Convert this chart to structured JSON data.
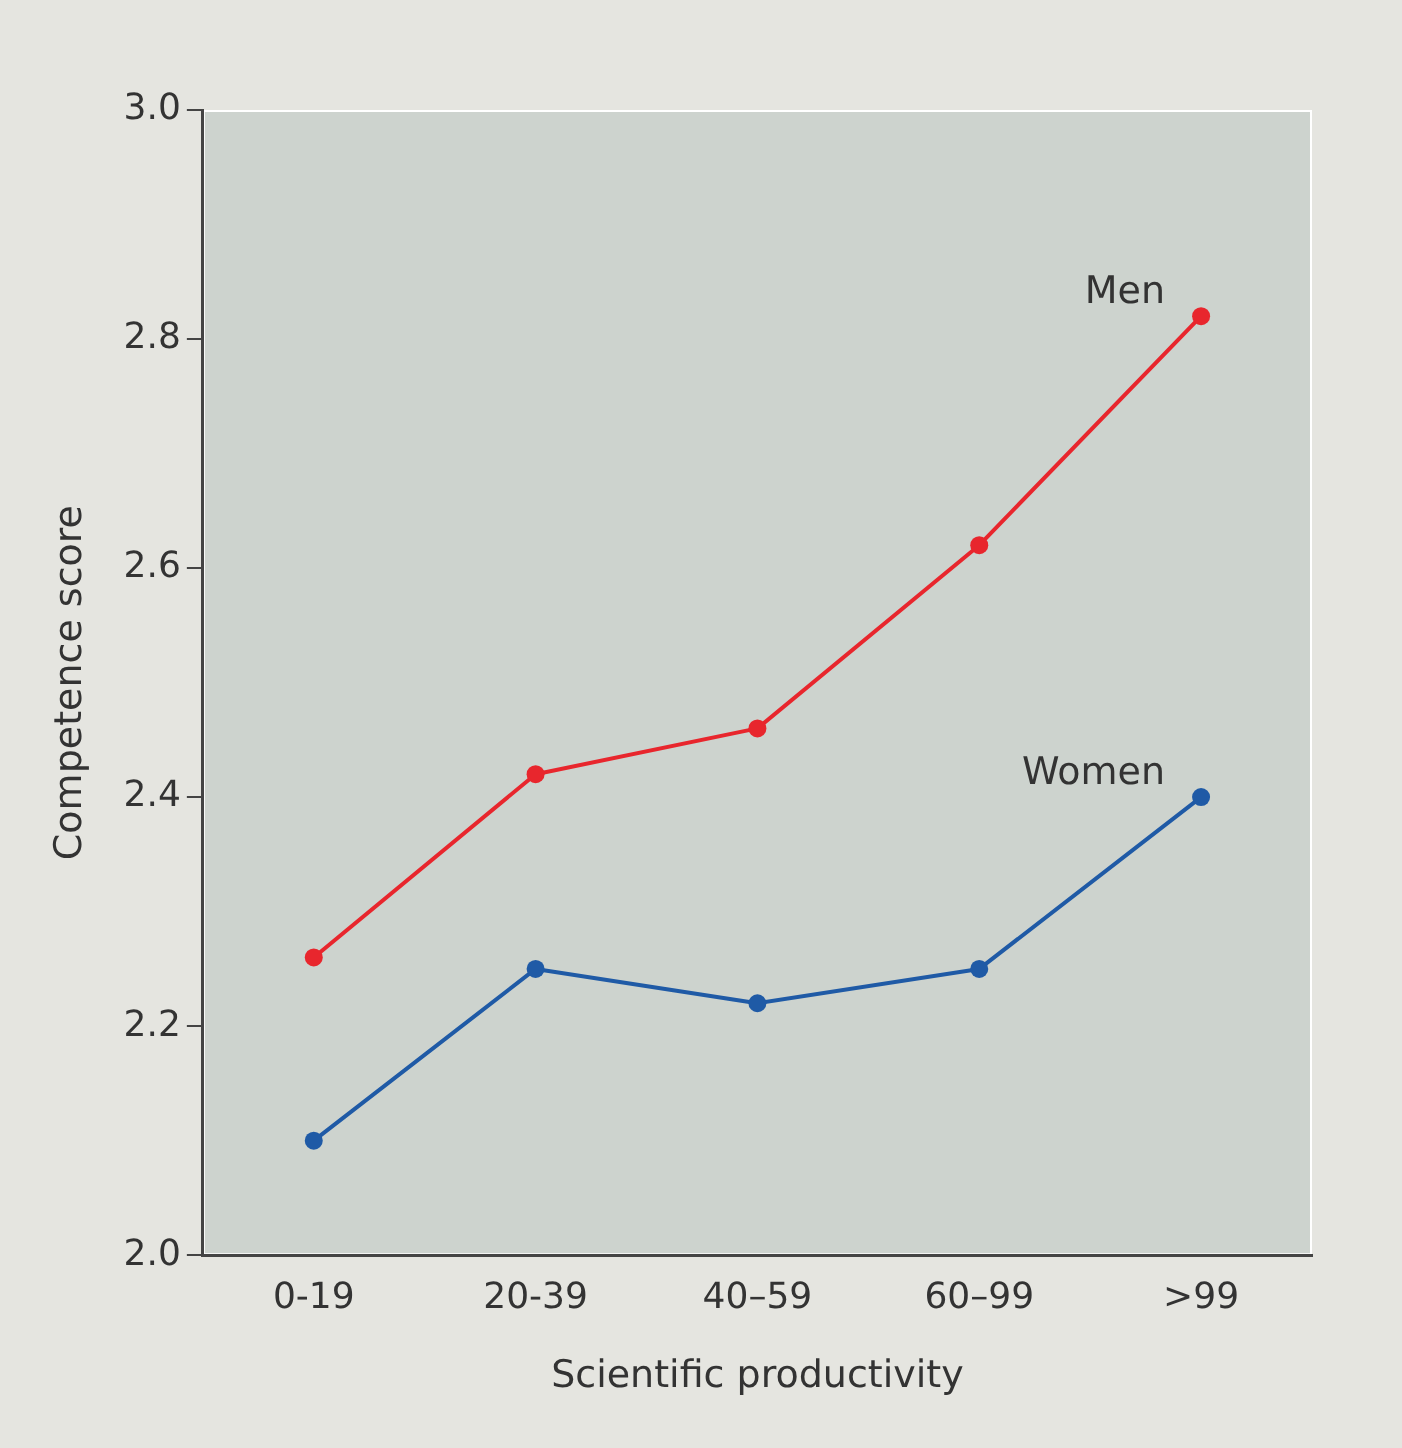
{
  "chart_data": {
    "type": "line",
    "xlabel": "Scientific productivity",
    "ylabel": "Competence score",
    "categories": [
      "0-19",
      "20-39",
      "40–59",
      "60–99",
      ">99"
    ],
    "series": [
      {
        "name": "Men",
        "color": "#e8262d",
        "values": [
          2.26,
          2.42,
          2.46,
          2.62,
          2.82
        ]
      },
      {
        "name": "Women",
        "color": "#1f5aa6",
        "values": [
          2.1,
          2.25,
          2.22,
          2.25,
          2.4
        ]
      }
    ],
    "ylim": [
      2.0,
      3.0
    ],
    "yticks": [
      {
        "value": 2.0,
        "label": "2.0"
      },
      {
        "value": 2.2,
        "label": "2.2"
      },
      {
        "value": 2.4,
        "label": "2.4"
      },
      {
        "value": 2.6,
        "label": "2.6"
      },
      {
        "value": 2.8,
        "label": "2.8"
      },
      {
        "value": 3.0,
        "label": "3.0"
      }
    ],
    "grid": false,
    "legend": false,
    "marker": "circle",
    "line_style": "solid"
  }
}
